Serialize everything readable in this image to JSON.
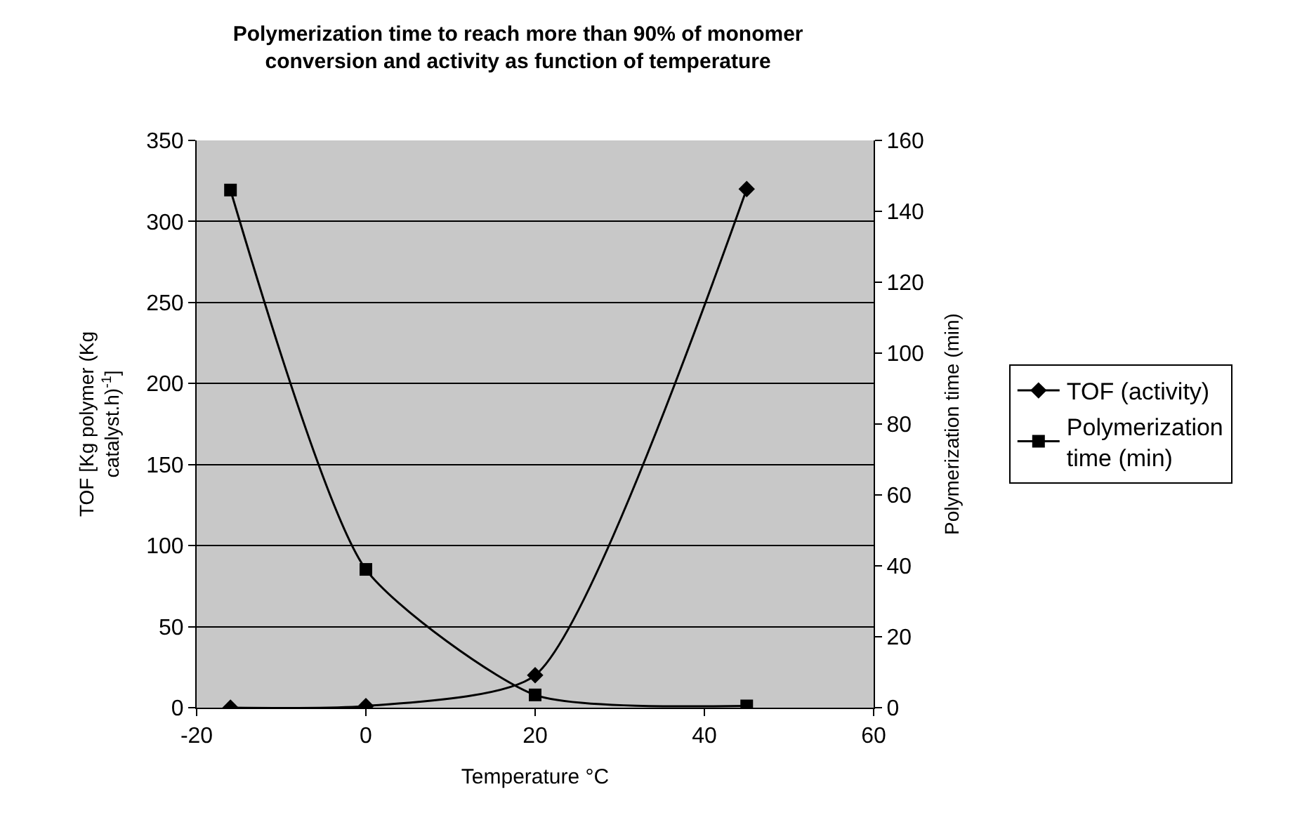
{
  "chart_data": {
    "type": "line",
    "title": "Polymerization time to reach more than 90% of monomer conversion and activity as function of temperature",
    "xlabel": "Temperature °C",
    "ylabel": "TOF [Kg polymer (Kg catalyst.h)$^{-1}$]",
    "y2label": "Polymerization time (min)",
    "x": [
      -16,
      0,
      20,
      45
    ],
    "series": [
      {
        "name": "TOF (activity)",
        "color": "#000000",
        "marker": "diamond",
        "values": [
          0,
          1,
          20,
          320
        ]
      },
      {
        "name": "Polymerization time (min)",
        "color": "#000000",
        "marker": "square",
        "axis": "y2",
        "values": [
          146,
          39,
          3.6,
          0.5
        ]
      }
    ],
    "xlim": [
      -20,
      60
    ],
    "xticks": [
      -20,
      0,
      20,
      40,
      60
    ],
    "ylim": [
      0,
      350
    ],
    "yticks": [
      0,
      50,
      100,
      150,
      200,
      250,
      300,
      350
    ],
    "y2lim": [
      0,
      160
    ],
    "y2ticks": [
      0,
      20,
      40,
      60,
      80,
      100,
      120,
      140,
      160
    ],
    "grid": "y",
    "legend": "right",
    "line_style": "solid"
  }
}
